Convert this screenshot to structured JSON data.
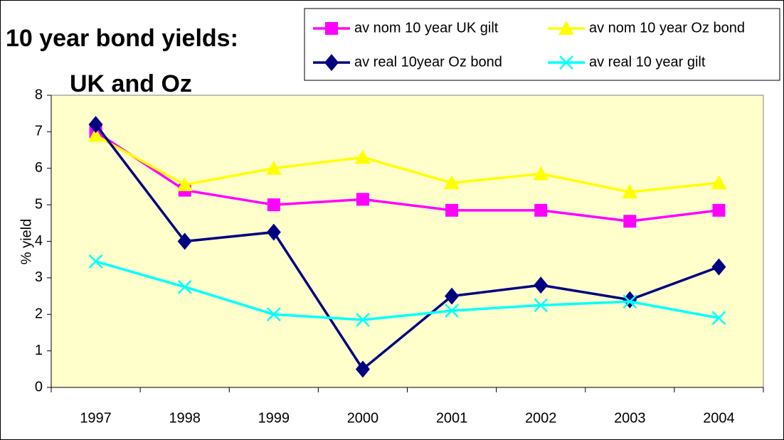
{
  "chart_data": {
    "type": "line",
    "title": [
      "10 year bond yields:",
      "UK and Oz"
    ],
    "y_label": "% yield",
    "categories": [
      "1997",
      "1998",
      "1999",
      "2000",
      "2001",
      "2002",
      "2003",
      "2004"
    ],
    "series": [
      {
        "name": "av nom 10 year UK gilt",
        "color": "#ff00ff",
        "marker": "square",
        "values": [
          7.0,
          5.4,
          5.0,
          5.15,
          4.85,
          4.85,
          4.55,
          4.85
        ]
      },
      {
        "name": "av nom 10 year Oz bond",
        "color": "#ffff00",
        "marker": "triangle",
        "values": [
          6.9,
          5.55,
          6.0,
          6.3,
          5.6,
          5.85,
          5.35,
          5.6
        ]
      },
      {
        "name": "av real 10year Oz bond",
        "color": "#000080",
        "marker": "diamond",
        "values": [
          7.2,
          4.0,
          4.25,
          0.5,
          2.5,
          2.8,
          2.4,
          3.3
        ]
      },
      {
        "name": "av real 10 year gilt",
        "color": "#00ffff",
        "marker": "x",
        "values": [
          3.45,
          2.75,
          2.0,
          1.85,
          2.1,
          2.25,
          2.35,
          1.9
        ]
      }
    ],
    "ylim": [
      0,
      8
    ],
    "yticks": [
      0,
      1,
      2,
      3,
      4,
      5,
      6,
      7,
      8
    ],
    "plot_background": "#ffffcc",
    "legend": "top-right"
  }
}
